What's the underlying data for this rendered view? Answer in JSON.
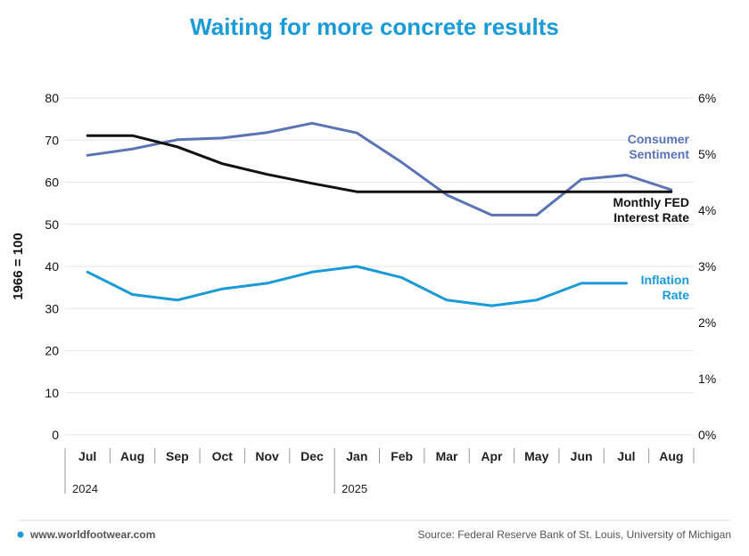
{
  "chart_data": {
    "type": "line",
    "title": "Waiting for more concrete results",
    "ylabel": "1966 = 100",
    "ylim": [
      0,
      80
    ],
    "yticks": [
      "0",
      "10",
      "20",
      "30",
      "40",
      "50",
      "60",
      "70",
      "80"
    ],
    "y2lim": [
      0,
      6
    ],
    "y2ticks": [
      "0%",
      "1%",
      "2%",
      "3%",
      "4%",
      "5%",
      "6%"
    ],
    "categories": [
      "Jul",
      "Aug",
      "Sep",
      "Oct",
      "Nov",
      "Dec",
      "Jan",
      "Feb",
      "Mar",
      "Apr",
      "May",
      "Jun",
      "Jul",
      "Aug"
    ],
    "years": [
      {
        "label": "2024",
        "start_index": 0
      },
      {
        "label": "2025",
        "start_index": 6
      }
    ],
    "grid": true,
    "series": [
      {
        "name": "Consumer Sentiment",
        "label_lines": [
          "Consumer",
          "Sentiment"
        ],
        "axis": "left",
        "color": "#5b73b5",
        "values": [
          66.4,
          67.9,
          70.1,
          70.5,
          71.8,
          74.0,
          71.7,
          64.7,
          57.0,
          52.2,
          52.2,
          60.7,
          61.7,
          58.2
        ]
      },
      {
        "name": "Monthly FED Interest Rate",
        "label_lines": [
          "Monthly FED",
          "Interest Rate"
        ],
        "axis": "right",
        "color": "#111111",
        "values": [
          5.33,
          5.33,
          5.13,
          4.83,
          4.64,
          4.48,
          4.33,
          4.33,
          4.33,
          4.33,
          4.33,
          4.33,
          4.33,
          4.33
        ]
      },
      {
        "name": "Inflation Rate",
        "label_lines": [
          "Inflation",
          "Rate"
        ],
        "axis": "right",
        "color": "#1a9ad6",
        "values": [
          2.9,
          2.5,
          2.4,
          2.6,
          2.7,
          2.9,
          3.0,
          2.8,
          2.4,
          2.3,
          2.4,
          2.7,
          2.7,
          null
        ]
      }
    ]
  },
  "footer": {
    "site": "www.worldfootwear.com",
    "source": "Source: Federal Reserve Bank of St. Louis, University of Michigan"
  },
  "colors": {
    "title": "#1a9ad6",
    "accent": "#1a9ad6",
    "grid": "#e6e6e6",
    "footer_text": "#555555"
  }
}
